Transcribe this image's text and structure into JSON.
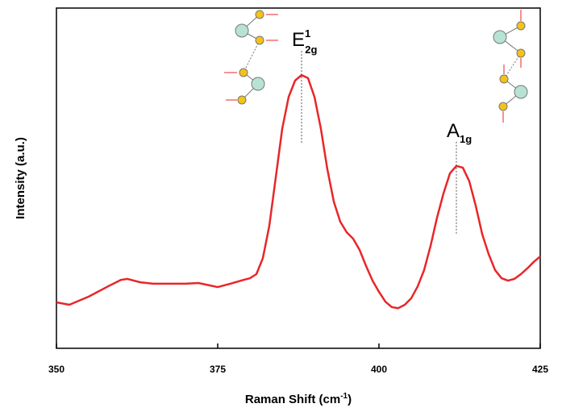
{
  "chart_data": {
    "type": "line",
    "xlabel": {
      "base": "Raman Shift (cm",
      "sup": "-1",
      "end": ")"
    },
    "ylabel": "Intensity (a.u.)",
    "x": [
      350,
      352,
      355,
      358,
      360,
      361,
      363,
      365,
      370,
      372,
      375,
      377,
      379,
      380,
      381,
      382,
      383,
      384,
      385,
      386,
      387,
      388,
      389,
      390,
      391,
      392,
      393,
      394,
      395,
      396,
      397,
      398,
      399,
      400,
      401,
      402,
      403,
      404,
      405,
      406,
      407,
      408,
      409,
      410,
      411,
      412,
      413,
      414,
      415,
      416,
      417,
      418,
      419,
      420,
      421,
      422,
      423,
      424,
      425
    ],
    "series": [
      {
        "color": "#e8262a",
        "values": [
          13.5,
          12.8,
          15.2,
          18.2,
          20.1,
          20.4,
          19.4,
          19.0,
          19.0,
          19.2,
          18.0,
          19.0,
          20.1,
          20.6,
          21.8,
          26.5,
          36.0,
          50.2,
          64.5,
          73.9,
          78.7,
          80.3,
          79.4,
          73.9,
          64.5,
          52.6,
          43.1,
          37.2,
          34.1,
          32.2,
          28.9,
          24.2,
          19.9,
          16.6,
          13.7,
          12.1,
          11.8,
          12.8,
          14.7,
          18.2,
          23.0,
          30.1,
          38.4,
          45.5,
          51.4,
          53.6,
          53.1,
          49.1,
          41.9,
          33.6,
          27.7,
          23.0,
          20.6,
          19.9,
          20.4,
          21.8,
          23.5,
          25.4,
          27.0
        ]
      }
    ],
    "xlim": [
      350,
      425
    ],
    "xticks": [
      350,
      375,
      400,
      425
    ],
    "ylim": [
      0,
      100
    ],
    "annotations": [
      {
        "base": "E",
        "sub": "2g",
        "sup": "1",
        "x": 388
      },
      {
        "base": "A",
        "sub": "1g",
        "x": 412
      }
    ]
  }
}
